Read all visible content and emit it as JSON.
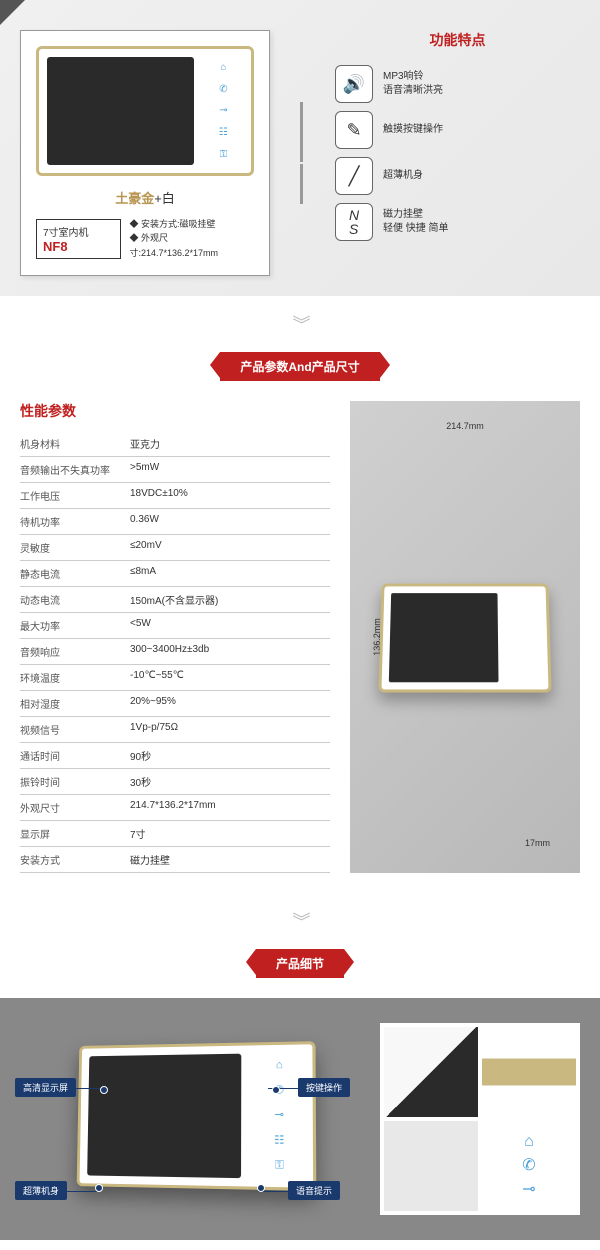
{
  "section1": {
    "features_title": "功能特点",
    "product_color": "土豪金",
    "product_color_suffix": "+白",
    "model_label": "7寸室内机",
    "model_code": "NF8",
    "install_spec": "◆ 安装方式:磁吸挂壁",
    "size_spec": "◆ 外观尺寸:214.7*136.2*17mm",
    "features": [
      {
        "icon": "🔊",
        "line1": "MP3响铃",
        "line2": "语音清晰洪亮"
      },
      {
        "icon": "✎",
        "line1": "触摸按键操作",
        "line2": ""
      },
      {
        "icon": "╱",
        "line1": "超薄机身",
        "line2": ""
      },
      {
        "icon": "NS",
        "line1": "磁力挂壁",
        "line2": "轻便 快捷 简单"
      }
    ]
  },
  "banner1": "产品参数And产品尺寸",
  "specs": {
    "title": "性能参数",
    "rows": [
      {
        "label": "机身材料",
        "value": "亚克力"
      },
      {
        "label": "音频输出不失真功率",
        "value": ">5mW"
      },
      {
        "label": "工作电压",
        "value": "18VDC±10%"
      },
      {
        "label": "待机功率",
        "value": "0.36W"
      },
      {
        "label": "灵敏度",
        "value": "≤20mV"
      },
      {
        "label": "静态电流",
        "value": "≤8mA"
      },
      {
        "label": "动态电流",
        "value": "150mA(不含显示器)"
      },
      {
        "label": "最大功率",
        "value": "<5W"
      },
      {
        "label": "音频响应",
        "value": "300~3400Hz±3db"
      },
      {
        "label": "环境温度",
        "value": "-10℃~55℃"
      },
      {
        "label": "相对湿度",
        "value": "20%~95%"
      },
      {
        "label": "视频信号",
        "value": "1Vp-p/75Ω"
      },
      {
        "label": "通话时间",
        "value": "90秒"
      },
      {
        "label": "振铃时间",
        "value": "30秒"
      },
      {
        "label": "外观尺寸",
        "value": "214.7*136.2*17mm"
      },
      {
        "label": "显示屏",
        "value": "7寸"
      },
      {
        "label": "安装方式",
        "value": "磁力挂壁"
      }
    ]
  },
  "dimensions": {
    "width": "214.7mm",
    "height": "136.2mm",
    "depth": "17mm"
  },
  "banner2": "产品细节",
  "callouts": {
    "c1": "高清显示屏",
    "c2": "超薄机身",
    "c3": "按键操作",
    "c4": "语音提示"
  },
  "colors": {
    "accent_red": "#c02020",
    "gold": "#c9b880",
    "gold_text": "#b89550",
    "callout_bg": "#1a3a6e",
    "icon_blue": "#4a9fd8",
    "screen": "#2a2a2a"
  }
}
